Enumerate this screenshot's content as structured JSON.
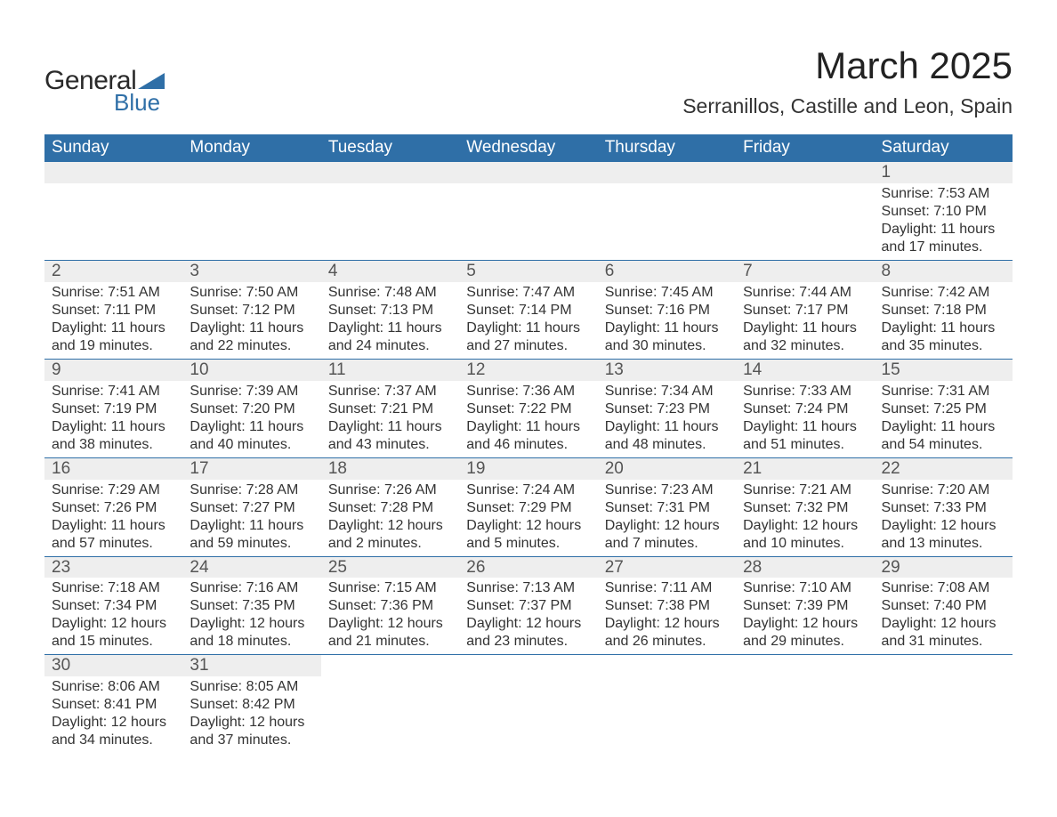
{
  "brand": {
    "word1": "General",
    "word2": "Blue",
    "accent_color": "#2f6fa7"
  },
  "title": "March 2025",
  "location": "Serranillos, Castille and Leon, Spain",
  "colors": {
    "header_bg": "#2f6fa7",
    "header_text": "#ffffff",
    "daynum_bg": "#eeeeee",
    "daynum_text": "#555555",
    "body_text": "#333333",
    "row_border": "#2f6fa7"
  },
  "weekdays": [
    "Sunday",
    "Monday",
    "Tuesday",
    "Wednesday",
    "Thursday",
    "Friday",
    "Saturday"
  ],
  "weeks": [
    [
      null,
      null,
      null,
      null,
      null,
      null,
      {
        "n": "1",
        "sr": "Sunrise: 7:53 AM",
        "ss": "Sunset: 7:10 PM",
        "d1": "Daylight: 11 hours",
        "d2": "and 17 minutes."
      }
    ],
    [
      {
        "n": "2",
        "sr": "Sunrise: 7:51 AM",
        "ss": "Sunset: 7:11 PM",
        "d1": "Daylight: 11 hours",
        "d2": "and 19 minutes."
      },
      {
        "n": "3",
        "sr": "Sunrise: 7:50 AM",
        "ss": "Sunset: 7:12 PM",
        "d1": "Daylight: 11 hours",
        "d2": "and 22 minutes."
      },
      {
        "n": "4",
        "sr": "Sunrise: 7:48 AM",
        "ss": "Sunset: 7:13 PM",
        "d1": "Daylight: 11 hours",
        "d2": "and 24 minutes."
      },
      {
        "n": "5",
        "sr": "Sunrise: 7:47 AM",
        "ss": "Sunset: 7:14 PM",
        "d1": "Daylight: 11 hours",
        "d2": "and 27 minutes."
      },
      {
        "n": "6",
        "sr": "Sunrise: 7:45 AM",
        "ss": "Sunset: 7:16 PM",
        "d1": "Daylight: 11 hours",
        "d2": "and 30 minutes."
      },
      {
        "n": "7",
        "sr": "Sunrise: 7:44 AM",
        "ss": "Sunset: 7:17 PM",
        "d1": "Daylight: 11 hours",
        "d2": "and 32 minutes."
      },
      {
        "n": "8",
        "sr": "Sunrise: 7:42 AM",
        "ss": "Sunset: 7:18 PM",
        "d1": "Daylight: 11 hours",
        "d2": "and 35 minutes."
      }
    ],
    [
      {
        "n": "9",
        "sr": "Sunrise: 7:41 AM",
        "ss": "Sunset: 7:19 PM",
        "d1": "Daylight: 11 hours",
        "d2": "and 38 minutes."
      },
      {
        "n": "10",
        "sr": "Sunrise: 7:39 AM",
        "ss": "Sunset: 7:20 PM",
        "d1": "Daylight: 11 hours",
        "d2": "and 40 minutes."
      },
      {
        "n": "11",
        "sr": "Sunrise: 7:37 AM",
        "ss": "Sunset: 7:21 PM",
        "d1": "Daylight: 11 hours",
        "d2": "and 43 minutes."
      },
      {
        "n": "12",
        "sr": "Sunrise: 7:36 AM",
        "ss": "Sunset: 7:22 PM",
        "d1": "Daylight: 11 hours",
        "d2": "and 46 minutes."
      },
      {
        "n": "13",
        "sr": "Sunrise: 7:34 AM",
        "ss": "Sunset: 7:23 PM",
        "d1": "Daylight: 11 hours",
        "d2": "and 48 minutes."
      },
      {
        "n": "14",
        "sr": "Sunrise: 7:33 AM",
        "ss": "Sunset: 7:24 PM",
        "d1": "Daylight: 11 hours",
        "d2": "and 51 minutes."
      },
      {
        "n": "15",
        "sr": "Sunrise: 7:31 AM",
        "ss": "Sunset: 7:25 PM",
        "d1": "Daylight: 11 hours",
        "d2": "and 54 minutes."
      }
    ],
    [
      {
        "n": "16",
        "sr": "Sunrise: 7:29 AM",
        "ss": "Sunset: 7:26 PM",
        "d1": "Daylight: 11 hours",
        "d2": "and 57 minutes."
      },
      {
        "n": "17",
        "sr": "Sunrise: 7:28 AM",
        "ss": "Sunset: 7:27 PM",
        "d1": "Daylight: 11 hours",
        "d2": "and 59 minutes."
      },
      {
        "n": "18",
        "sr": "Sunrise: 7:26 AM",
        "ss": "Sunset: 7:28 PM",
        "d1": "Daylight: 12 hours",
        "d2": "and 2 minutes."
      },
      {
        "n": "19",
        "sr": "Sunrise: 7:24 AM",
        "ss": "Sunset: 7:29 PM",
        "d1": "Daylight: 12 hours",
        "d2": "and 5 minutes."
      },
      {
        "n": "20",
        "sr": "Sunrise: 7:23 AM",
        "ss": "Sunset: 7:31 PM",
        "d1": "Daylight: 12 hours",
        "d2": "and 7 minutes."
      },
      {
        "n": "21",
        "sr": "Sunrise: 7:21 AM",
        "ss": "Sunset: 7:32 PM",
        "d1": "Daylight: 12 hours",
        "d2": "and 10 minutes."
      },
      {
        "n": "22",
        "sr": "Sunrise: 7:20 AM",
        "ss": "Sunset: 7:33 PM",
        "d1": "Daylight: 12 hours",
        "d2": "and 13 minutes."
      }
    ],
    [
      {
        "n": "23",
        "sr": "Sunrise: 7:18 AM",
        "ss": "Sunset: 7:34 PM",
        "d1": "Daylight: 12 hours",
        "d2": "and 15 minutes."
      },
      {
        "n": "24",
        "sr": "Sunrise: 7:16 AM",
        "ss": "Sunset: 7:35 PM",
        "d1": "Daylight: 12 hours",
        "d2": "and 18 minutes."
      },
      {
        "n": "25",
        "sr": "Sunrise: 7:15 AM",
        "ss": "Sunset: 7:36 PM",
        "d1": "Daylight: 12 hours",
        "d2": "and 21 minutes."
      },
      {
        "n": "26",
        "sr": "Sunrise: 7:13 AM",
        "ss": "Sunset: 7:37 PM",
        "d1": "Daylight: 12 hours",
        "d2": "and 23 minutes."
      },
      {
        "n": "27",
        "sr": "Sunrise: 7:11 AM",
        "ss": "Sunset: 7:38 PM",
        "d1": "Daylight: 12 hours",
        "d2": "and 26 minutes."
      },
      {
        "n": "28",
        "sr": "Sunrise: 7:10 AM",
        "ss": "Sunset: 7:39 PM",
        "d1": "Daylight: 12 hours",
        "d2": "and 29 minutes."
      },
      {
        "n": "29",
        "sr": "Sunrise: 7:08 AM",
        "ss": "Sunset: 7:40 PM",
        "d1": "Daylight: 12 hours",
        "d2": "and 31 minutes."
      }
    ],
    [
      {
        "n": "30",
        "sr": "Sunrise: 8:06 AM",
        "ss": "Sunset: 8:41 PM",
        "d1": "Daylight: 12 hours",
        "d2": "and 34 minutes."
      },
      {
        "n": "31",
        "sr": "Sunrise: 8:05 AM",
        "ss": "Sunset: 8:42 PM",
        "d1": "Daylight: 12 hours",
        "d2": "and 37 minutes."
      },
      null,
      null,
      null,
      null,
      null
    ]
  ]
}
